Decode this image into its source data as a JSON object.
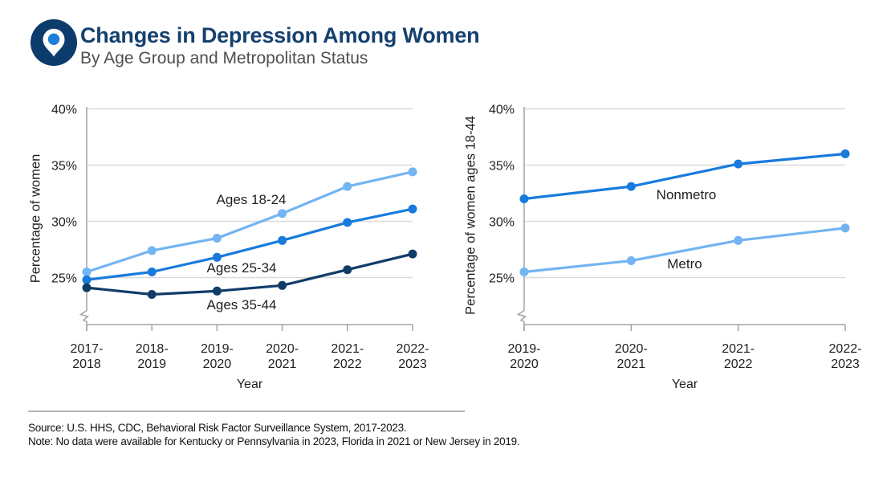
{
  "header": {
    "title": "Changes in Depression Among Women",
    "subtitle": "By Age Group and Metropolitan Status",
    "icon": "location-pin-icon"
  },
  "colors": {
    "title": "#15406f",
    "subtitle": "#4f4f4f",
    "text": "#1f1f1f",
    "icon_circle": "#0c3c6b",
    "icon_dot": "#1a7fd9",
    "light_blue": "#73b4f3",
    "medium_blue": "#187bdc",
    "navy": "#103c68",
    "gridline": "#d9d9d9",
    "axis": "#a3a3a3",
    "divider": "#b2b2b2",
    "footer_text": "#111111"
  },
  "chart_data": [
    {
      "type": "line",
      "title": "",
      "xlabel": "Year",
      "ylabel": "Percentage of women",
      "categories": [
        "2017-2018",
        "2018-2019",
        "2019-2020",
        "2020-2021",
        "2021-2022",
        "2022-2023"
      ],
      "yticks": [
        {
          "label": "25%",
          "value": 25
        },
        {
          "label": "30%",
          "value": 30
        },
        {
          "label": "35%",
          "value": 35
        },
        {
          "label": "40%",
          "value": 40
        }
      ],
      "ylim": [
        20.5,
        40
      ],
      "axis_break": true,
      "grid": true,
      "legend": "inline-labels",
      "series": [
        {
          "name": "Ages 18-24",
          "color": "#73b4f3",
          "values": [
            25.5,
            27.4,
            28.5,
            30.7,
            33.1,
            34.4
          ]
        },
        {
          "name": "Ages 25-34",
          "color": "#187bdc",
          "values": [
            24.8,
            25.5,
            26.8,
            28.3,
            29.9,
            31.1
          ]
        },
        {
          "name": "Ages 35-44",
          "color": "#103c68",
          "values": [
            24.1,
            23.5,
            23.8,
            24.3,
            25.7,
            27.1
          ]
        }
      ]
    },
    {
      "type": "line",
      "title": "",
      "xlabel": "Year",
      "ylabel": "Percentage of women ages 18-44",
      "categories": [
        "2019-2020",
        "2020-2021",
        "2021-2022",
        "2022-2023"
      ],
      "yticks": [
        {
          "label": "25%",
          "value": 25
        },
        {
          "label": "30%",
          "value": 30
        },
        {
          "label": "35%",
          "value": 35
        },
        {
          "label": "40%",
          "value": 40
        }
      ],
      "ylim": [
        20.5,
        40
      ],
      "axis_break": true,
      "grid": true,
      "legend": "inline-labels",
      "series": [
        {
          "name": "Nonmetro",
          "color": "#187bdc",
          "values": [
            32.0,
            33.1,
            35.1,
            36.0
          ]
        },
        {
          "name": "Metro",
          "color": "#73b4f3",
          "values": [
            25.5,
            26.5,
            28.3,
            29.4
          ]
        }
      ]
    }
  ],
  "footer": {
    "source": "Source: U.S. HHS, CDC, Behavioral Risk Factor Surveillance System, 2017-2023.",
    "note": "Note: No data were available for Kentucky or Pennsylvania in 2023, Florida in 2021 or New Jersey in 2019."
  }
}
